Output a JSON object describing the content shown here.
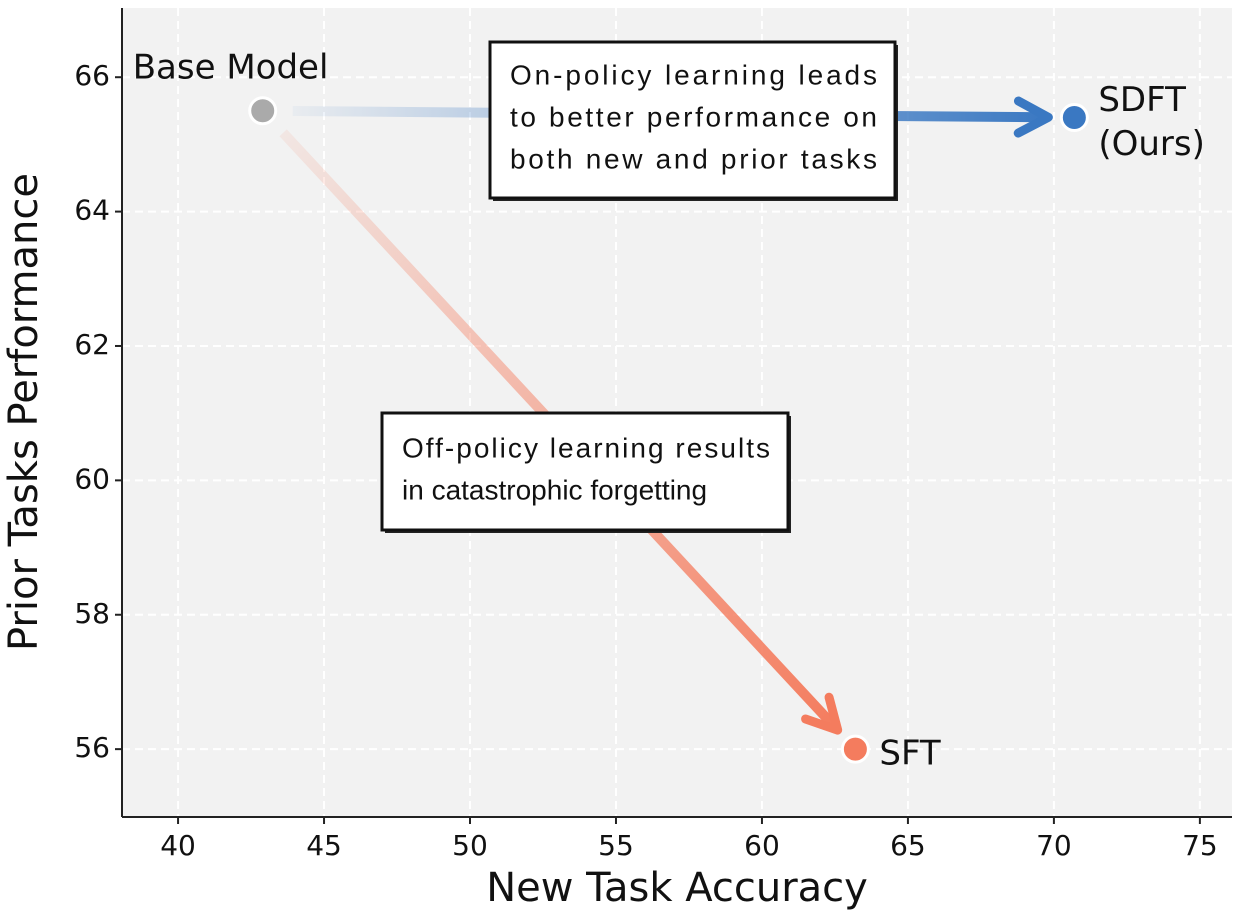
{
  "chart_data": {
    "type": "scatter",
    "x_label": "New Task Accuracy",
    "y_label": "Prior Tasks Performance",
    "xlim": [
      38.08,
      76.1
    ],
    "ylim": [
      54.99,
      67.03
    ],
    "xticks": [
      40,
      45,
      50,
      55,
      60,
      65,
      70,
      75
    ],
    "yticks": [
      56,
      58,
      60,
      62,
      64,
      66
    ],
    "grid": true,
    "series": [
      {
        "name": "Base Model",
        "label_lines": [
          "Base Model"
        ],
        "color": "#aaaaaa",
        "x": [
          42.9
        ],
        "values": [
          65.5
        ]
      },
      {
        "name": "SDFT (Ours)",
        "label_lines": [
          "SDFT",
          "(Ours)"
        ],
        "color": "#3a78c2",
        "x": [
          70.7
        ],
        "values": [
          65.4
        ]
      },
      {
        "name": "SFT",
        "label_lines": [
          "SFT"
        ],
        "color": "#f47c5e",
        "x": [
          63.2
        ],
        "values": [
          56.0
        ]
      }
    ],
    "annotations": [
      {
        "lines": [
          "On-policy learning leads",
          "to better performance on",
          "both new and prior tasks"
        ]
      },
      {
        "lines": [
          "Off-policy learning results",
          "in catastrophic forgetting"
        ]
      }
    ]
  }
}
